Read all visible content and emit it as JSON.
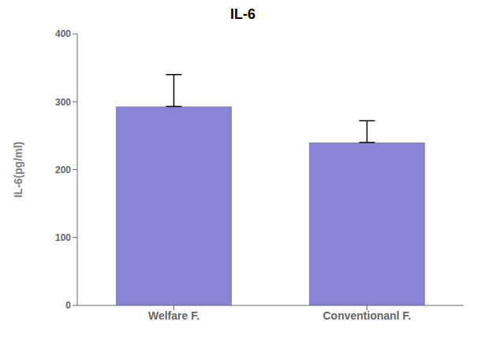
{
  "chart_data": {
    "type": "bar",
    "title": "IL-6",
    "ylabel": "IL-6(pg/ml)",
    "categories": [
      "Welfare F.",
      "Conventionanl F."
    ],
    "values": [
      293,
      240
    ],
    "errors": [
      47,
      32
    ],
    "ylim": [
      0,
      400
    ],
    "yticks": [
      0,
      100,
      200,
      300,
      400
    ],
    "color": "#8884d8",
    "grid": false
  }
}
